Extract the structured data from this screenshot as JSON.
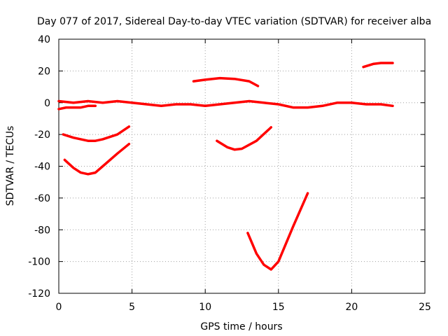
{
  "chart_data": {
    "type": "scatter",
    "title": "Day 077 of 2017, Sidereal Day-to-day VTEC variation (SDTVAR) for receiver alba",
    "xlabel": "GPS time / hours",
    "ylabel": "SDTVAR / TECUs",
    "xlim": [
      0,
      25
    ],
    "ylim": [
      -120,
      40
    ],
    "xticks": [
      0,
      5,
      10,
      15,
      20,
      25
    ],
    "yticks": [
      40,
      20,
      0,
      -20,
      -40,
      -60,
      -80,
      -100,
      -120
    ],
    "grid": true,
    "color": "#ff0000",
    "series": [
      {
        "x": [
          0,
          1,
          2,
          3,
          4,
          5,
          6,
          7,
          8,
          9,
          10,
          11,
          12,
          13,
          14,
          15,
          16,
          17,
          18,
          19,
          20,
          21,
          22,
          22.8
        ],
        "y": [
          1,
          0,
          1,
          0,
          1,
          0,
          -1,
          -2,
          -1,
          -1,
          -2,
          -1,
          0,
          1,
          0,
          -1,
          -3,
          -3,
          -2,
          0,
          0,
          -1,
          -1,
          -2
        ]
      },
      {
        "x": [
          0,
          0.5,
          1,
          1.5,
          2,
          2.5
        ],
        "y": [
          -4,
          -3,
          -3,
          -3,
          -2,
          -2
        ]
      },
      {
        "x": [
          0.3,
          1,
          2,
          2.5,
          3,
          4,
          4.8
        ],
        "y": [
          -20,
          -22,
          -24,
          -24,
          -23,
          -20,
          -15
        ]
      },
      {
        "x": [
          0.4,
          1,
          1.5,
          2,
          2.5,
          3,
          4,
          4.8
        ],
        "y": [
          -36,
          -41,
          -44,
          -45,
          -44,
          -40,
          -32,
          -26
        ]
      },
      {
        "x": [
          9.2,
          10,
          11,
          12,
          13,
          13.6
        ],
        "y": [
          13.5,
          14.5,
          15.5,
          15,
          13.5,
          10.5
        ]
      },
      {
        "x": [
          10.8,
          11.5,
          12,
          12.5,
          13.5,
          14.5
        ],
        "y": [
          -24,
          -28,
          -29.5,
          -29,
          -24,
          -15.5
        ]
      },
      {
        "x": [
          12.9,
          13.5,
          14,
          14.5,
          15,
          16,
          17
        ],
        "y": [
          -82,
          -95,
          -102,
          -105,
          -100,
          -78,
          -57
        ]
      },
      {
        "x": [
          20.8,
          21.5,
          22,
          22.8
        ],
        "y": [
          22.5,
          24.5,
          25,
          25
        ]
      }
    ]
  }
}
